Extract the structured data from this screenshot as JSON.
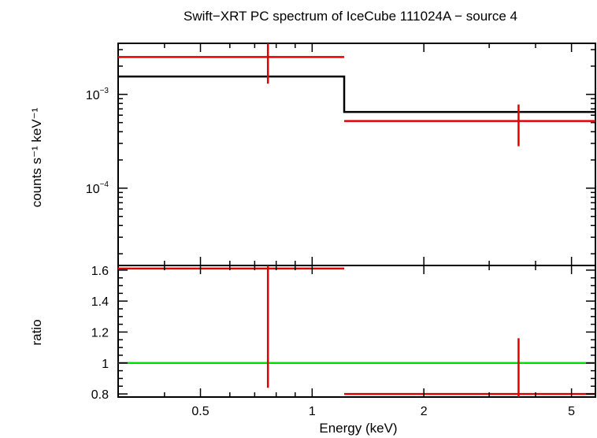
{
  "chart_data": [
    {
      "type": "line",
      "panel": "spectrum",
      "title": "Swift−XRT PC spectrum of IceCube 111024A − source 4",
      "xlabel": "Energy (keV)",
      "ylabel": "counts s⁻¹ keV⁻¹",
      "x_scale": "log",
      "y_scale": "log",
      "xlim": [
        0.3,
        5.8
      ],
      "ylim": [
        1.5e-05,
        0.0035
      ],
      "x_ticks": [
        "0.5",
        "1",
        "2",
        "5"
      ],
      "y_tick_labels": [
        {
          "value": 0.001,
          "mantissa": "10",
          "exponent": "−3"
        },
        {
          "value": 0.0001,
          "mantissa": "10",
          "exponent": "−4"
        }
      ],
      "series": [
        {
          "kind": "data",
          "color": "#e00000",
          "points": [
            {
              "x": 0.76,
              "xlo": 0.3,
              "xhi": 1.22,
              "y": 0.0025,
              "ylo": 0.0013,
              "yhi": 0.0037
            },
            {
              "x": 3.6,
              "xlo": 1.22,
              "xhi": 5.8,
              "y": 0.00052,
              "ylo": 0.00028,
              "yhi": 0.00078
            }
          ]
        },
        {
          "kind": "model",
          "color": "#000000",
          "steps": [
            {
              "xlo": 0.3,
              "xhi": 1.22,
              "y": 0.00155
            },
            {
              "xlo": 1.22,
              "xhi": 5.8,
              "y": 0.00065
            }
          ]
        }
      ]
    },
    {
      "type": "line",
      "panel": "ratio",
      "xlabel": "Energy (keV)",
      "ylabel": "ratio",
      "x_scale": "log",
      "y_scale": "linear",
      "xlim": [
        0.3,
        5.8
      ],
      "ylim": [
        0.78,
        1.63
      ],
      "x_ticks": [
        "0.5",
        "1",
        "2",
        "5"
      ],
      "y_ticks": [
        "0.8",
        "1",
        "1.2",
        "1.4",
        "1.6"
      ],
      "reference_line": {
        "y": 1,
        "color": "#00e000"
      },
      "series": [
        {
          "kind": "data",
          "color": "#e00000",
          "points": [
            {
              "x": 0.76,
              "xlo": 0.3,
              "xhi": 1.22,
              "y": 1.61,
              "ylo": 0.84,
              "yhi": 1.63
            },
            {
              "x": 3.6,
              "xlo": 1.22,
              "xhi": 5.8,
              "y": 0.8,
              "ylo": 0.78,
              "yhi": 1.16
            }
          ]
        }
      ]
    }
  ]
}
